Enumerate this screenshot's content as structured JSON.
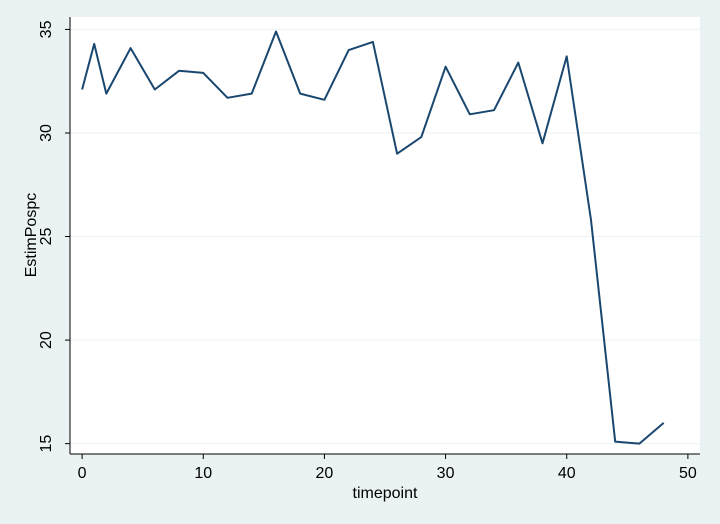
{
  "chart_data": {
    "type": "line",
    "title": "",
    "xlabel": "timepoint",
    "ylabel": "EstimPospc",
    "xlim": [
      -1,
      51
    ],
    "ylim": [
      14.5,
      35.6
    ],
    "xticks": [
      0,
      10,
      20,
      30,
      40,
      50
    ],
    "yticks": [
      15,
      20,
      25,
      30,
      35
    ],
    "grid": "horizontal",
    "colors": {
      "background": "#eaf2f3",
      "plot_bg": "#ffffff",
      "line": "#1a476f",
      "grid": "#eaf2f3"
    },
    "series": [
      {
        "x": [
          0,
          1,
          2,
          4,
          6,
          8,
          10,
          12,
          14,
          16,
          18,
          20,
          22,
          24,
          26,
          28,
          30,
          32,
          34,
          36,
          38,
          40,
          42,
          44,
          46,
          48
        ],
        "y": [
          32.1,
          34.3,
          31.9,
          34.1,
          32.1,
          33.0,
          32.9,
          31.7,
          31.9,
          34.9,
          31.9,
          31.6,
          34.0,
          34.4,
          29.0,
          29.8,
          33.2,
          30.9,
          31.1,
          33.4,
          29.5,
          33.7,
          25.8,
          15.1,
          15.0,
          16.0
        ]
      }
    ]
  }
}
